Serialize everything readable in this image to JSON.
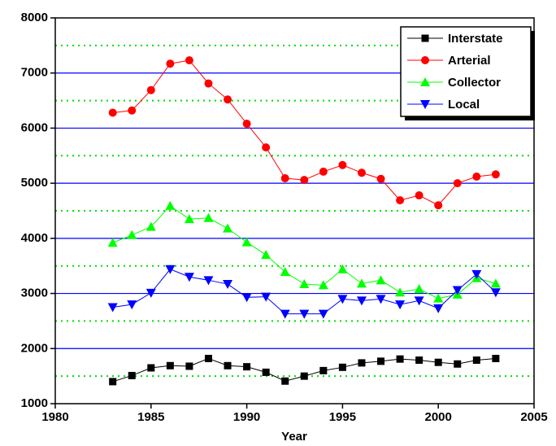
{
  "chart_data": {
    "type": "line",
    "xlabel": "Year",
    "x": [
      1983,
      1984,
      1985,
      1986,
      1987,
      1988,
      1989,
      1990,
      1991,
      1992,
      1993,
      1994,
      1995,
      1996,
      1997,
      1998,
      1999,
      2000,
      2001,
      2002,
      2003
    ],
    "series": [
      {
        "name": "Interstate",
        "color": "#000000",
        "marker": "square",
        "values": [
          1400,
          1510,
          1650,
          1690,
          1680,
          1820,
          1690,
          1670,
          1570,
          1410,
          1500,
          1600,
          1660,
          1740,
          1770,
          1810,
          1790,
          1750,
          1720,
          1790,
          1820
        ]
      },
      {
        "name": "Arterial",
        "color": "#ff0000",
        "marker": "circle",
        "values": [
          6280,
          6320,
          6690,
          7170,
          7230,
          6810,
          6520,
          6080,
          5650,
          5090,
          5060,
          5210,
          5330,
          5190,
          5080,
          4690,
          4780,
          4600,
          5000,
          5120,
          5160
        ]
      },
      {
        "name": "Collector",
        "color": "#00ff00",
        "marker": "triangle-up",
        "values": [
          3920,
          4060,
          4210,
          4590,
          4350,
          4370,
          4180,
          3930,
          3700,
          3390,
          3170,
          3150,
          3440,
          3180,
          3240,
          3020,
          3080,
          2910,
          2980,
          3280,
          3180
        ]
      },
      {
        "name": "Local",
        "color": "#0000ff",
        "marker": "triangle-down",
        "values": [
          2750,
          2800,
          3010,
          3440,
          3300,
          3240,
          3170,
          2930,
          2940,
          2630,
          2630,
          2630,
          2900,
          2870,
          2900,
          2800,
          2870,
          2730,
          3060,
          3350,
          3020
        ]
      }
    ],
    "xlim": [
      1980,
      2005
    ],
    "xticks": [
      1980,
      1985,
      1990,
      1995,
      2000,
      2005
    ],
    "ylim": [
      1000,
      8000
    ],
    "yticks": [
      1000,
      2000,
      3000,
      4000,
      5000,
      6000,
      7000,
      8000
    ],
    "y_minor_grid": [
      1500,
      2500,
      3500,
      4500,
      5500,
      6500,
      7500
    ],
    "grid": true,
    "legend": "upper right"
  }
}
